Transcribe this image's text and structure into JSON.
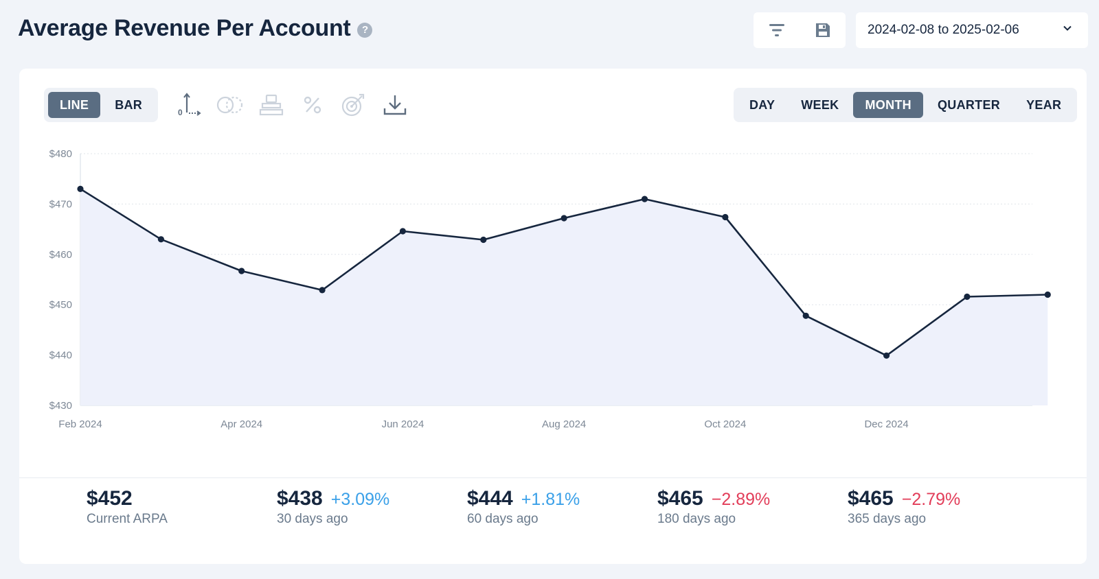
{
  "header": {
    "title": "Average Revenue Per Account",
    "help_icon": "?",
    "date_range": "2024-02-08 to 2025-02-06"
  },
  "icons": {
    "filter": "filter-icon",
    "save": "save-icon",
    "chevron": "chevron-down-icon",
    "axis": "axis-zero-icon",
    "compare": "compare-circles-icon",
    "stack": "stack-icon",
    "percent": "percent-icon",
    "goal": "goal-target-icon",
    "download": "download-icon"
  },
  "chart_type_toggle": [
    "LINE",
    "BAR"
  ],
  "chart_type_selected": "LINE",
  "period_toggle": [
    "DAY",
    "WEEK",
    "MONTH",
    "QUARTER",
    "YEAR"
  ],
  "period_selected": "MONTH",
  "colors": {
    "line": "#16263e",
    "area": "#eef1fb",
    "positive": "#3aa0e8",
    "negative": "#e23d59",
    "active_toggle": "#5a6d82"
  },
  "chart_data": {
    "type": "area",
    "x_unit": "month",
    "x": [
      "2024-02",
      "2024-03",
      "2024-04",
      "2024-05",
      "2024-06",
      "2024-07",
      "2024-08",
      "2024-09",
      "2024-10",
      "2024-11",
      "2024-12",
      "2025-01",
      "2025-02"
    ],
    "series": [
      {
        "values": [
          473,
          463,
          456.7,
          452.9,
          464.6,
          462.9,
          467.2,
          471,
          467.4,
          447.8,
          439.9,
          451.6,
          452
        ]
      }
    ],
    "ylim": [
      430,
      480
    ],
    "yticks": [
      "$430",
      "$440",
      "$450",
      "$460",
      "$470",
      "$480"
    ],
    "xticks": [
      "Feb 2024",
      "Apr 2024",
      "Jun 2024",
      "Aug 2024",
      "Oct 2024",
      "Dec 2024"
    ],
    "grid": true,
    "legend": "none"
  },
  "stats": [
    {
      "value": "$452",
      "change": "",
      "direction": "",
      "label": "Current ARPA"
    },
    {
      "value": "$438",
      "change": "+3.09%",
      "direction": "up",
      "label": "30 days ago"
    },
    {
      "value": "$444",
      "change": "+1.81%",
      "direction": "up",
      "label": "60 days ago"
    },
    {
      "value": "$465",
      "change": "−2.89%",
      "direction": "down",
      "label": "180 days ago"
    },
    {
      "value": "$465",
      "change": "−2.79%",
      "direction": "down",
      "label": "365 days ago"
    }
  ]
}
